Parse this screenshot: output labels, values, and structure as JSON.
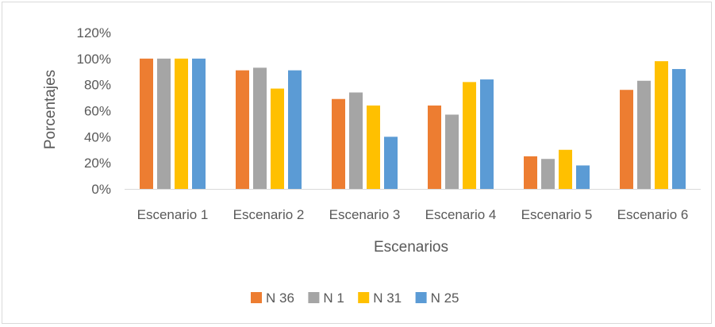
{
  "chart_data": {
    "type": "bar",
    "title": "",
    "xlabel": "Escenarios",
    "ylabel": "Porcentajes",
    "categories": [
      "Escenario 1",
      "Escenario 2",
      "Escenario 3",
      "Escenario 4",
      "Escenario 5",
      "Escenario 6"
    ],
    "series": [
      {
        "name": "N 36",
        "color": "#ED7D31",
        "values": [
          100,
          91,
          69,
          64,
          25,
          76
        ]
      },
      {
        "name": "N 1",
        "color": "#A5A5A5",
        "values": [
          100,
          93,
          74,
          57,
          23,
          83
        ]
      },
      {
        "name": "N 31",
        "color": "#FFC000",
        "values": [
          100,
          77,
          64,
          82,
          30,
          98
        ]
      },
      {
        "name": "N 25",
        "color": "#5B9BD5",
        "values": [
          100,
          91,
          40,
          84,
          18,
          92
        ]
      }
    ],
    "ylim": [
      0,
      120
    ],
    "yticks": [
      0,
      20,
      40,
      60,
      80,
      100,
      120
    ],
    "ytick_labels": [
      "0%",
      "20%",
      "40%",
      "60%",
      "80%",
      "100%",
      "120%"
    ],
    "grid": false,
    "legend_position": "bottom"
  }
}
